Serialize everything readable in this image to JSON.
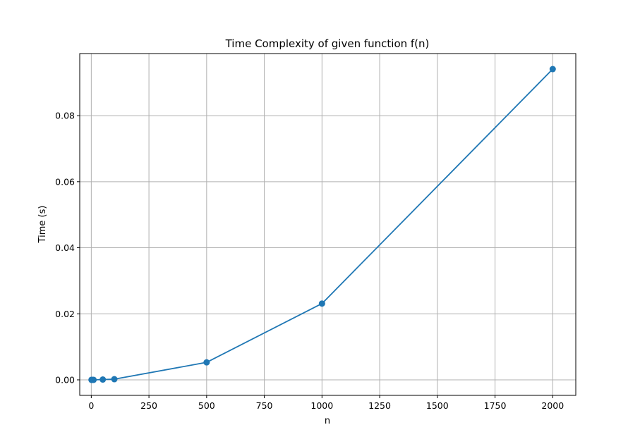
{
  "chart_data": {
    "type": "line",
    "title": "Time Complexity of given function f(n)",
    "xlabel": "n",
    "ylabel": "Time (s)",
    "xlim": [
      -50,
      2100
    ],
    "ylim": [
      -0.0047,
      0.0988
    ],
    "xticks": [
      0,
      250,
      500,
      750,
      1000,
      1250,
      1500,
      1750,
      2000
    ],
    "xtick_labels": [
      "0",
      "250",
      "500",
      "750",
      "1000",
      "1250",
      "1500",
      "1750",
      "2000"
    ],
    "yticks": [
      0.0,
      0.02,
      0.04,
      0.06,
      0.08
    ],
    "ytick_labels": [
      "0.00",
      "0.02",
      "0.04",
      "0.06",
      "0.08"
    ],
    "grid": true,
    "series": [
      {
        "x": [
          1,
          5,
          10,
          50,
          100,
          500,
          1000,
          2000
        ],
        "y": [
          0.0,
          0.0,
          0.0,
          0.0001,
          0.0002,
          0.0053,
          0.0231,
          0.0941
        ],
        "color": "#1f77b4",
        "marker": "circle"
      }
    ]
  }
}
